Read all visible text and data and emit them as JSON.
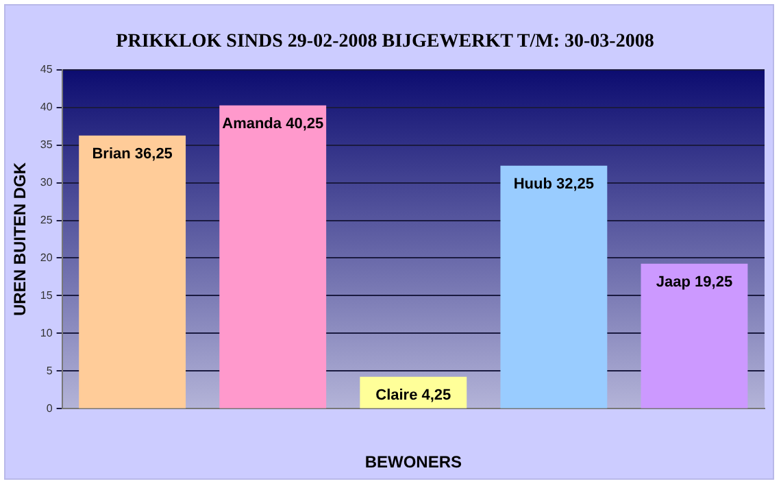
{
  "chart_data": {
    "type": "bar",
    "title": "PRIKKLOK SINDS 29-02-2008 BIJGEWERKT T/M: 30-03-2008",
    "xlabel": "BEWONERS",
    "ylabel": "UREN BUITEN DGK",
    "categories": [
      null,
      null,
      null,
      null,
      null
    ],
    "values": [
      36.25,
      40.25,
      4.25,
      32.25,
      19.25
    ],
    "value_labels": [
      "Brian 36,25",
      "Amanda 40,25",
      "Claire 4,25",
      "Huub 32,25",
      "Jaap 19,25"
    ],
    "colors": [
      "#ffcc99",
      "#ff99cc",
      "#ffff99",
      "#99ccff",
      "#cc99ff"
    ],
    "ylim": [
      0,
      45
    ],
    "yticks": [
      0,
      5,
      10,
      15,
      20,
      25,
      30,
      35,
      40,
      45
    ],
    "grid": "y",
    "legend": false
  }
}
